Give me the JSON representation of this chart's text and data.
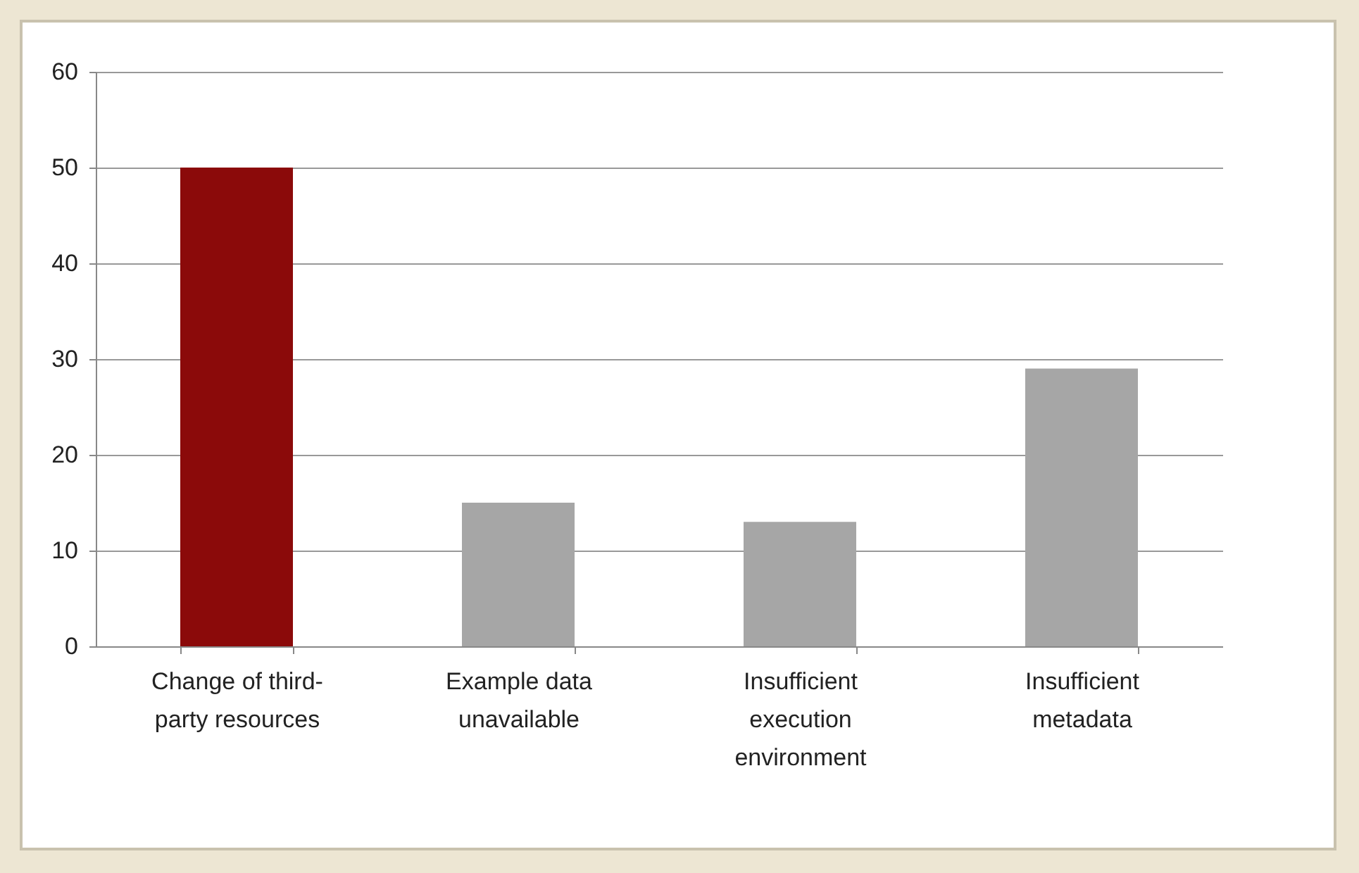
{
  "chart_data": {
    "type": "bar",
    "categories": [
      "Change of third-party resources",
      "Example data unavailable",
      "Insufficient execution environment",
      "Insufficient metadata"
    ],
    "values": [
      50,
      15,
      13,
      29
    ],
    "colors": [
      "#8b0a0a",
      "#a6a6a6",
      "#a6a6a6",
      "#a6a6a6"
    ],
    "ylim": [
      0,
      60
    ],
    "yticks": [
      0,
      10,
      20,
      30,
      40,
      50,
      60
    ],
    "grid": "y"
  }
}
